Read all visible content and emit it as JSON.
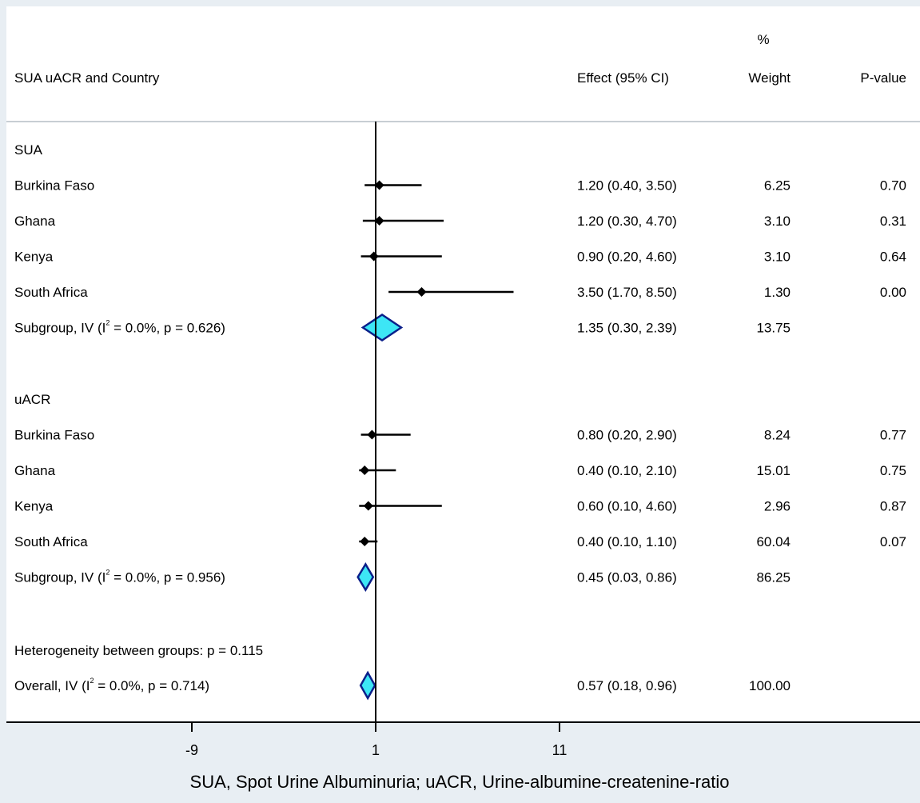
{
  "chart_data": {
    "type": "forest",
    "columns": {
      "study": "SUA uACR and Country",
      "effect": "Effect (95% CI)",
      "weight_top": "%",
      "weight": "Weight",
      "pvalue": "P-value"
    },
    "xlim": [
      -9,
      11
    ],
    "null_line": 1,
    "ticks": [
      "-9",
      "1",
      "11"
    ],
    "xlabel": "SUA, Spot Urine Albuminuria; uACR, Urine-albumine-createnine-ratio",
    "groups": [
      {
        "label": "SUA",
        "studies": [
          {
            "name": "Burkina Faso",
            "effect": 1.2,
            "lo": 0.4,
            "hi": 3.5,
            "effect_text": "1.20 (0.40, 3.50)",
            "weight": "6.25",
            "p": "0.70"
          },
          {
            "name": "Ghana",
            "effect": 1.2,
            "lo": 0.3,
            "hi": 4.7,
            "effect_text": "1.20 (0.30, 4.70)",
            "weight": "3.10",
            "p": "0.31"
          },
          {
            "name": "Kenya",
            "effect": 0.9,
            "lo": 0.2,
            "hi": 4.6,
            "effect_text": "0.90 (0.20, 4.60)",
            "weight": "3.10",
            "p": "0.64"
          },
          {
            "name": "South Africa",
            "effect": 3.5,
            "lo": 1.7,
            "hi": 8.5,
            "effect_text": "3.50 (1.70, 8.50)",
            "weight": "1.30",
            "p": "0.00"
          }
        ],
        "subgroup": {
          "prefix": "Subgroup, IV (I",
          "sup": "2",
          "suffix": " = 0.0%, p = 0.626)",
          "effect": 1.35,
          "lo": 0.3,
          "hi": 2.39,
          "effect_text": "1.35 (0.30, 2.39)",
          "weight": "13.75"
        }
      },
      {
        "label": "uACR",
        "studies": [
          {
            "name": "Burkina Faso",
            "effect": 0.8,
            "lo": 0.2,
            "hi": 2.9,
            "effect_text": "0.80 (0.20, 2.90)",
            "weight": "8.24",
            "p": "0.77"
          },
          {
            "name": "Ghana",
            "effect": 0.4,
            "lo": 0.1,
            "hi": 2.1,
            "effect_text": "0.40 (0.10, 2.10)",
            "weight": "15.01",
            "p": "0.75"
          },
          {
            "name": "Kenya",
            "effect": 0.6,
            "lo": 0.1,
            "hi": 4.6,
            "effect_text": "0.60 (0.10, 4.60)",
            "weight": "2.96",
            "p": "0.87"
          },
          {
            "name": "South Africa",
            "effect": 0.4,
            "lo": 0.1,
            "hi": 1.1,
            "effect_text": "0.40 (0.10, 1.10)",
            "weight": "60.04",
            "p": "0.07"
          }
        ],
        "subgroup": {
          "prefix": "Subgroup, IV (I",
          "sup": "2",
          "suffix": " = 0.0%, p = 0.956)",
          "effect": 0.45,
          "lo": 0.03,
          "hi": 0.86,
          "effect_text": "0.45 (0.03, 0.86)",
          "weight": "86.25"
        }
      }
    ],
    "heterogeneity": "Heterogeneity between groups: p = 0.115",
    "overall": {
      "prefix": "Overall, IV (I",
      "sup": "2",
      "suffix": " = 0.0%, p = 0.714)",
      "effect": 0.57,
      "lo": 0.18,
      "hi": 0.96,
      "effect_text": "0.57 (0.18, 0.96)",
      "weight": "100.00"
    },
    "colors": {
      "background": "#e8eef3",
      "panel": "#ffffff",
      "diamond_fill": "#3de6f5",
      "diamond_stroke": "#0b1f8a",
      "marker": "#000000"
    }
  }
}
